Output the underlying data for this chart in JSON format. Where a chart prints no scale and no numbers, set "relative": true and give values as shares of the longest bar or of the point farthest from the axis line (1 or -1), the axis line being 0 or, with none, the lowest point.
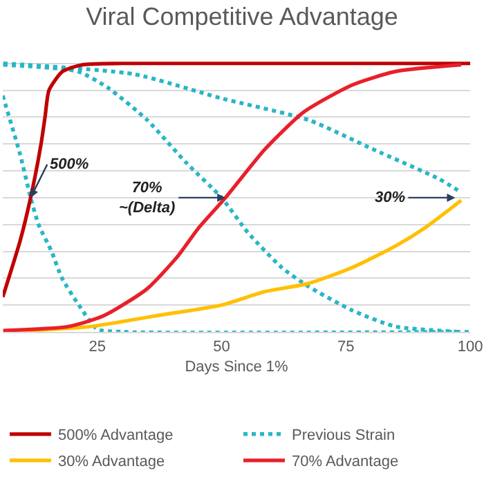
{
  "chart_data": {
    "type": "line",
    "title": "Viral Competitive Advantage",
    "xlabel": "Days Since 1%",
    "relative": true,
    "xlim": [
      6,
      100
    ],
    "xticks": [
      25,
      50,
      75,
      100
    ],
    "grid": "y",
    "legend": "bottom",
    "series": [
      {
        "name": "500% Advantage",
        "color": "#c00000",
        "line_style": "solid",
        "x": [
          6,
          9.5,
          11.6,
          13.7,
          14.5,
          15.3,
          18,
          22,
          30,
          100
        ],
        "values": [
          0.13,
          0.34,
          0.5,
          0.7,
          0.8,
          0.9,
          0.97,
          0.995,
          1,
          1
        ]
      },
      {
        "name": "Previous Strain",
        "color": "#29b6c6",
        "line_style": "dotted",
        "x": [
          6,
          9.5,
          11.6,
          13.2,
          15.8,
          17.9,
          21.3,
          25,
          30,
          100
        ],
        "values": [
          0.88,
          0.66,
          0.5,
          0.4,
          0.3,
          0.2,
          0.1,
          0.01,
          0,
          0
        ]
      },
      {
        "name": "30% Advantage",
        "color": "#ffc000",
        "line_style": "solid",
        "x": [
          6.1,
          23.7,
          36.8,
          50,
          58.7,
          67.4,
          76.3,
          85,
          91.1,
          98.2
        ],
        "values": [
          0,
          0.02,
          0.06,
          0.1,
          0.15,
          0.18,
          0.24,
          0.32,
          0.39,
          0.49
        ]
      },
      {
        "name": "70% Advantage",
        "color": "#e8202a",
        "line_style": "solid",
        "x": [
          6.1,
          19.2,
          26.3,
          35,
          41.1,
          45.5,
          50.8,
          58.7,
          66.6,
          76.3,
          85,
          98.2
        ],
        "values": [
          0.005,
          0.02,
          0.06,
          0.16,
          0.28,
          0.39,
          0.5,
          0.68,
          0.82,
          0.92,
          0.97,
          0.995
        ]
      },
      {
        "color": "#29b6c6",
        "line_style": "dotted",
        "x": [
          6.1,
          21.1,
          27.1,
          35,
          42.9,
          50,
          55.3,
          62.1,
          67.4,
          76.3,
          85,
          98.2
        ],
        "values": [
          0.995,
          0.97,
          0.91,
          0.79,
          0.63,
          0.5,
          0.37,
          0.24,
          0.17,
          0.08,
          0.02,
          0
        ]
      },
      {
        "color": "#29b6c6",
        "line_style": "dotted",
        "x": [
          6.1,
          32.4,
          50,
          67.4,
          80.5,
          93.7,
          98.2
        ],
        "values": [
          1.0,
          0.96,
          0.87,
          0.79,
          0.68,
          0.57,
          0.52
        ]
      }
    ],
    "annotations": [
      {
        "text": "500%",
        "x": 11.6,
        "y": 0.5
      },
      {
        "text": "70%\n~(Delta)",
        "x": 50.8,
        "y": 0.5
      },
      {
        "text": "30%",
        "x": 97,
        "y": 0.5
      }
    ]
  }
}
